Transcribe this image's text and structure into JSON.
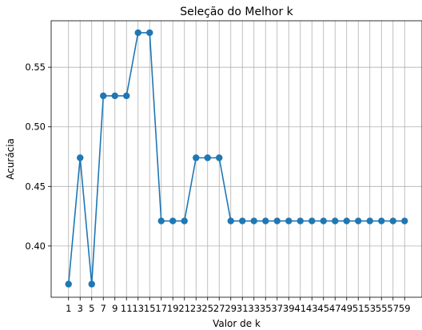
{
  "chart_data": {
    "type": "line",
    "title": "Seleção do Melhor k",
    "xlabel": "Valor de k",
    "ylabel": "Acurácia",
    "x": [
      1,
      3,
      5,
      7,
      9,
      11,
      13,
      15,
      17,
      19,
      21,
      23,
      25,
      27,
      29,
      31,
      33,
      35,
      37,
      39,
      41,
      43,
      45,
      47,
      49,
      51,
      53,
      55,
      57,
      59
    ],
    "series": [
      {
        "values": [
          0.368,
          0.474,
          0.368,
          0.526,
          0.526,
          0.526,
          0.579,
          0.579,
          0.421,
          0.421,
          0.421,
          0.474,
          0.474,
          0.474,
          0.421,
          0.421,
          0.421,
          0.421,
          0.421,
          0.421,
          0.421,
          0.421,
          0.421,
          0.421,
          0.421,
          0.421,
          0.421,
          0.421,
          0.421,
          0.421
        ],
        "color": "#1f77b4",
        "marker": "circle"
      }
    ],
    "xlim": [
      -2,
      62
    ],
    "ylim": [
      0.357,
      0.589
    ],
    "yticks": [
      0.4,
      0.45,
      0.5,
      0.55
    ],
    "ytick_labels": [
      "0.40",
      "0.45",
      "0.50",
      "0.55"
    ],
    "grid": true
  }
}
